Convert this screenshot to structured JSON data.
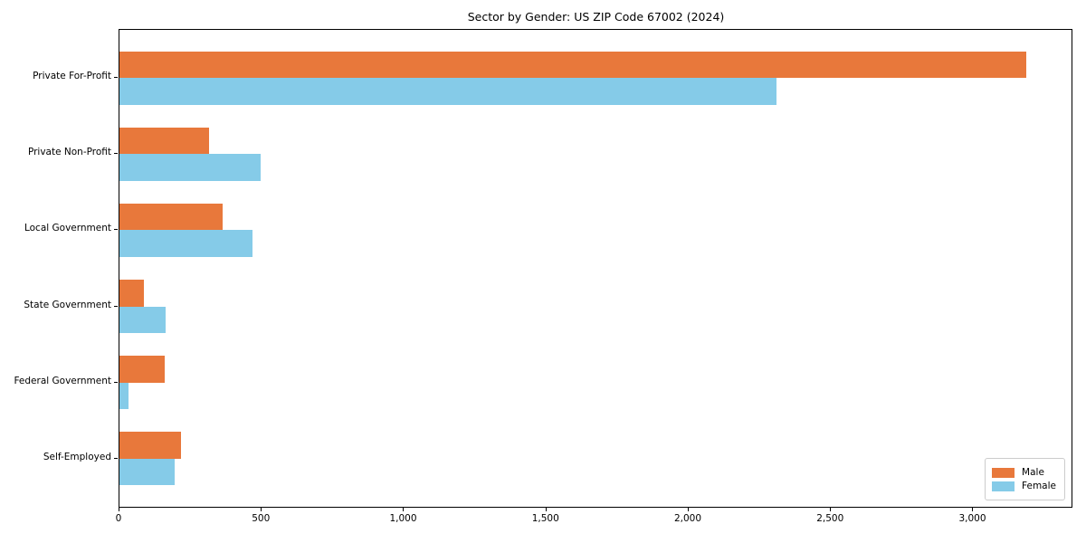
{
  "chart_data": {
    "type": "bar",
    "orientation": "horizontal",
    "title": "Sector by Gender: US ZIP Code 67002 (2024)",
    "categories": [
      "Private For-Profit",
      "Private Non-Profit",
      "Local Government",
      "State Government",
      "Federal Government",
      "Self-Employed"
    ],
    "series": [
      {
        "name": "Male",
        "color": "#e8783b",
        "values": [
          3186,
          314,
          362,
          86,
          159,
          216
        ]
      },
      {
        "name": "Female",
        "color": "#85cbe8",
        "values": [
          2307,
          495,
          466,
          162,
          32,
          193
        ]
      }
    ],
    "xlabel": "",
    "ylabel": "",
    "xlim": [
      0,
      3345
    ],
    "xticks": [
      0,
      500,
      1000,
      1500,
      2000,
      2500,
      3000
    ],
    "xtick_labels": [
      "0",
      "500",
      "1,000",
      "1,500",
      "2,000",
      "2,500",
      "3,000"
    ],
    "grid": false,
    "legend": {
      "position": "lower-right",
      "entries": [
        {
          "label": "Male",
          "color": "#e8783b"
        },
        {
          "label": "Female",
          "color": "#85cbe8"
        }
      ]
    }
  }
}
